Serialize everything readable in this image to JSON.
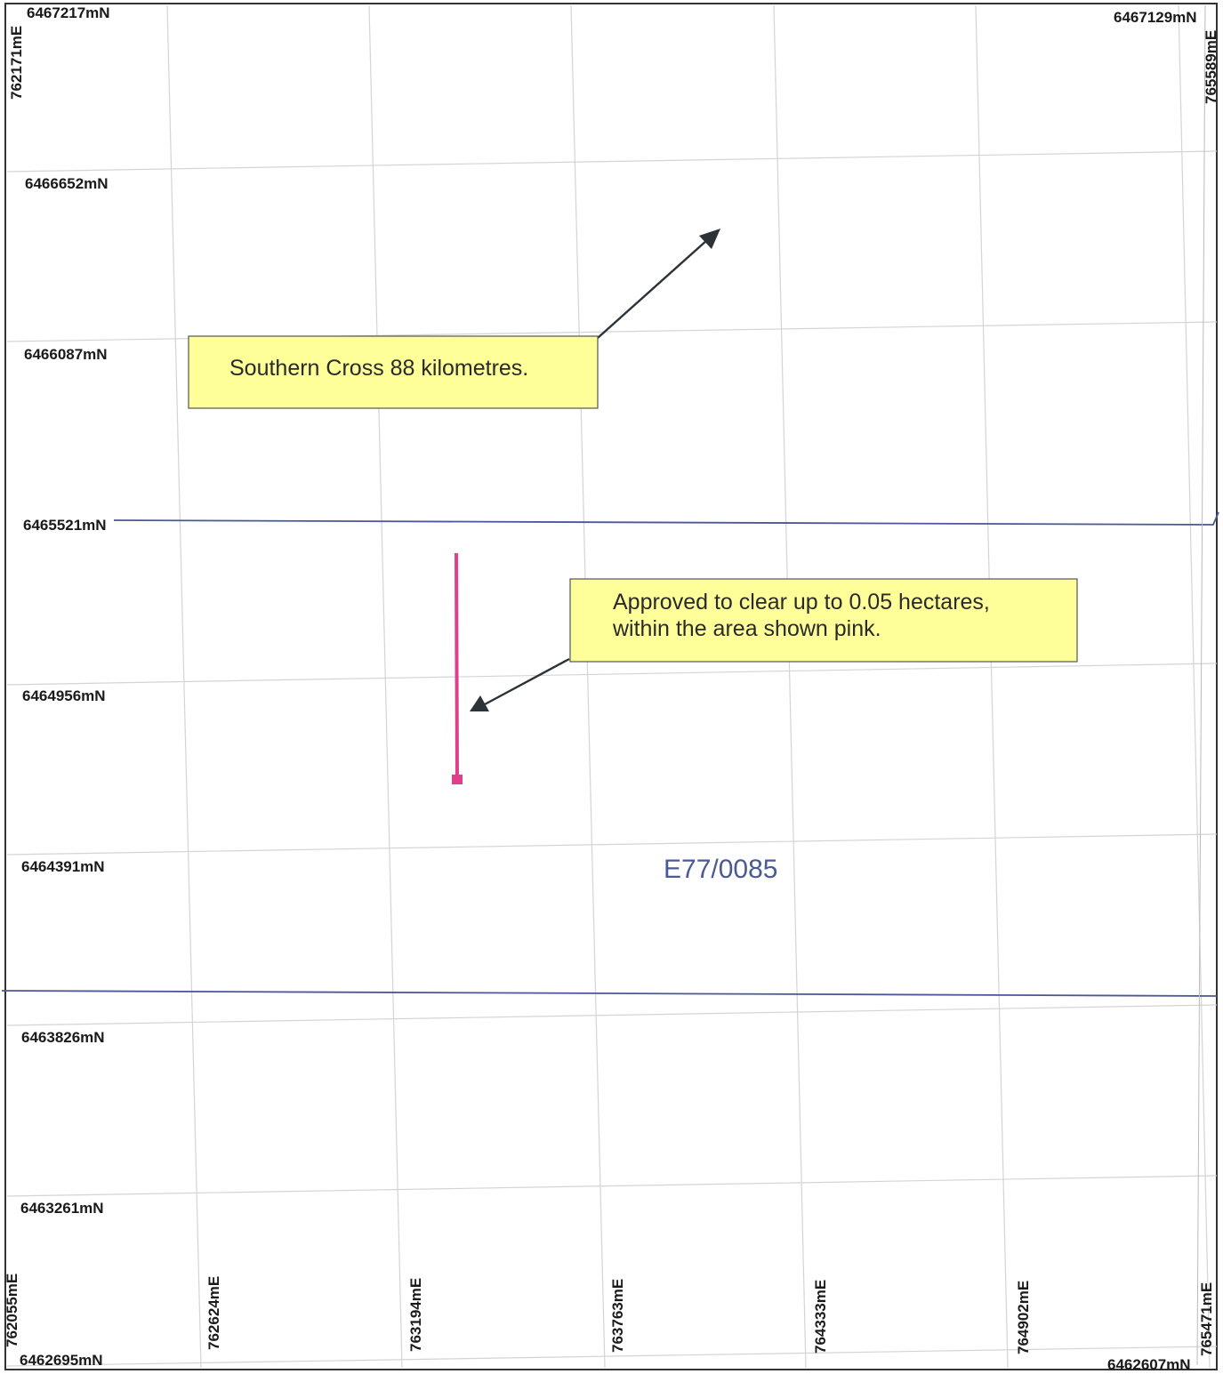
{
  "map": {
    "northing_labels": [
      "6467217mN",
      "6466652mN",
      "6466087mN",
      "6465521mN",
      "6464956mN",
      "6464391mN",
      "6463826mN",
      "6463261mN",
      "6462695mN"
    ],
    "corner_labels": {
      "top_right_northing": "6467129mN",
      "bottom_right_northing": "6462607mN",
      "top_left_easting": "762171mE",
      "top_right_easting": "765589mE"
    },
    "easting_labels": [
      "762055mE",
      "762624mE",
      "763194mE",
      "763763mE",
      "764333mE",
      "764902mE",
      "765471mE"
    ],
    "callouts": {
      "southern_cross": "Southern Cross 88 kilometres.",
      "approved_line1": "Approved to clear up to 0.05 hectares,",
      "approved_line2": "within the area shown pink."
    },
    "tenement_label": "E77/0085",
    "colors": {
      "grid": "#d4d4d4",
      "boundary": "#4a5799",
      "clearing_area": "#e0408a",
      "callout_fill": "#ffff99",
      "arrow": "#2b3238"
    }
  }
}
